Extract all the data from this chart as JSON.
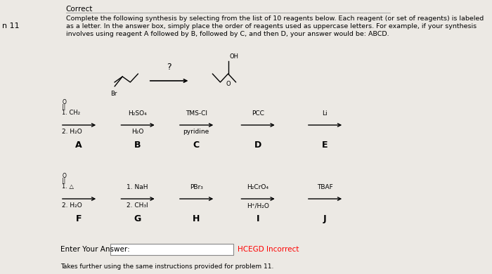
{
  "bg_color": "#ece9e4",
  "title_label": "n 11",
  "correct_text": "Correct",
  "instructions_line1": "Complete the following synthesis by selecting from the list of 10 reagents below. Each reagent (or set of reagents) is labeled",
  "instructions_line2": "as a letter. In the answer box, simply place the order of reagents used as uppercase letters. For example, if your synthesis",
  "instructions_line3": "involves using reagent A followed by B, followed by C, and then D, your answer would be: ABCD.",
  "reagent_row1": [
    {
      "label": "A",
      "above1": "O",
      "above2": "||",
      "line1": "1. CH₂",
      "line2": "2. H₂O"
    },
    {
      "label": "B",
      "above1": "",
      "above2": "",
      "line1": "H₂SO₄",
      "line2": "H₂O"
    },
    {
      "label": "C",
      "above1": "",
      "above2": "",
      "line1": "TMS-Cl",
      "line2": "pyridine"
    },
    {
      "label": "D",
      "above1": "",
      "above2": "",
      "line1": "PCC",
      "line2": ""
    },
    {
      "label": "E",
      "above1": "",
      "above2": "",
      "line1": "Li",
      "line2": ""
    }
  ],
  "reagent_row2": [
    {
      "label": "F",
      "above1": "O",
      "above2": "||",
      "line1": "1. △",
      "line2": "2. H₂O"
    },
    {
      "label": "G",
      "above1": "",
      "above2": "",
      "line1": "1. NaH",
      "line2": "2. CH₃I"
    },
    {
      "label": "H",
      "above1": "",
      "above2": "",
      "line1": "PBr₃",
      "line2": ""
    },
    {
      "label": "I",
      "above1": "",
      "above2": "",
      "line1": "H₂CrO₄",
      "line2": "H⁺/H₂O"
    },
    {
      "label": "J",
      "above1": "",
      "above2": "",
      "line1": "TBAF",
      "line2": ""
    }
  ],
  "answer_label": "Enter Your Answer:",
  "incorrect_text": "HCEGD Incorrect",
  "bottom_text": "Takes further using the same instructions provided for problem 11."
}
